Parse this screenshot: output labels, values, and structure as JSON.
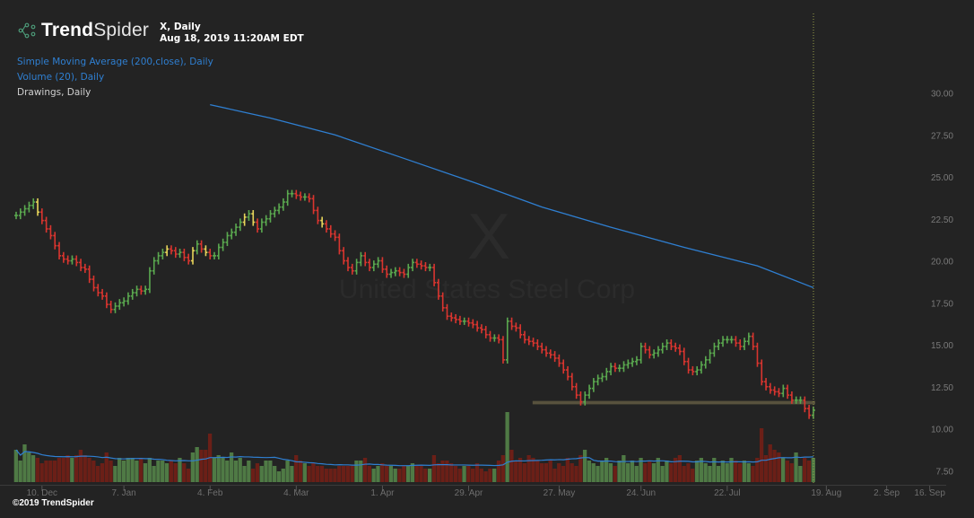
{
  "header": {
    "brand_bold": "Trend",
    "brand_light": "Spider",
    "symbol_line": "X, Daily",
    "timestamp": "Aug 18, 2019 11:20AM EDT"
  },
  "indicators": [
    {
      "label": "Simple Moving Average (200,close), Daily",
      "color": "#2f7fd1"
    },
    {
      "label": "Volume (20), Daily",
      "color": "#2f7fd1"
    },
    {
      "label": "Drawings, Daily",
      "color": "#cfcfcf"
    }
  ],
  "watermark": {
    "ticker": "X",
    "company": "United States Steel Corp"
  },
  "copyright": "©2019 TrendSpider",
  "colors": {
    "up": "#5aa84f",
    "down": "#d9352f",
    "neutral": "#e6d45a",
    "vol_up": "#4f7a45",
    "vol_down": "#6b1f17",
    "sma": "#2f7fd1",
    "zone": "#5e5840",
    "background": "#232323"
  },
  "chart_data": {
    "type": "ohlc",
    "title": "X, Daily",
    "y_ticks": [
      "30.00",
      "27.50",
      "25.00",
      "22.50",
      "20.00",
      "17.50",
      "15.00",
      "12.50",
      "10.00",
      "7.50"
    ],
    "ylim": [
      7.5,
      30
    ],
    "x_ticks": [
      {
        "label": "10. Dec",
        "index": 6
      },
      {
        "label": "7. Jan",
        "index": 25
      },
      {
        "label": "4. Feb",
        "index": 45
      },
      {
        "label": "4. Mar",
        "index": 65
      },
      {
        "label": "1. Apr",
        "index": 85
      },
      {
        "label": "29. Apr",
        "index": 105
      },
      {
        "label": "27. May",
        "index": 126
      },
      {
        "label": "24. Jun",
        "index": 145
      },
      {
        "label": "22. Jul",
        "index": 165
      },
      {
        "label": "19. Aug",
        "index": 188
      },
      {
        "label": "2. Sep",
        "index": 202
      },
      {
        "label": "16. Sep",
        "index": 212
      }
    ],
    "closes": [
      22.7,
      22.9,
      23.1,
      23.3,
      23.5,
      22.9,
      22.4,
      21.9,
      21.5,
      20.9,
      20.3,
      20.1,
      20.0,
      20.1,
      19.9,
      19.6,
      19.5,
      18.9,
      18.4,
      18.1,
      17.9,
      17.4,
      17.1,
      17.3,
      17.5,
      17.6,
      17.9,
      18.1,
      18.3,
      18.2,
      18.3,
      19.4,
      20.0,
      20.3,
      20.5,
      20.7,
      20.6,
      20.4,
      20.5,
      20.2,
      20.0,
      20.6,
      21.0,
      20.7,
      20.5,
      20.3,
      20.3,
      20.8,
      21.1,
      21.5,
      21.7,
      22.0,
      22.3,
      22.6,
      22.8,
      22.3,
      21.9,
      22.3,
      22.5,
      22.8,
      23.0,
      23.2,
      23.5,
      24.0,
      24.0,
      23.9,
      23.8,
      23.8,
      23.7,
      23.0,
      22.4,
      22.2,
      21.9,
      21.6,
      21.4,
      20.6,
      20.0,
      19.6,
      19.4,
      19.9,
      20.3,
      19.9,
      19.6,
      19.8,
      20.0,
      19.5,
      19.2,
      19.3,
      19.4,
      19.3,
      19.2,
      19.6,
      19.9,
      19.8,
      19.7,
      19.6,
      19.6,
      18.7,
      17.9,
      17.2,
      16.7,
      16.6,
      16.5,
      16.4,
      16.4,
      16.3,
      16.2,
      16.0,
      15.9,
      15.6,
      15.4,
      15.4,
      15.3,
      14.1,
      16.4,
      16.1,
      16.0,
      15.6,
      15.3,
      15.2,
      15.1,
      14.9,
      14.7,
      14.5,
      14.4,
      14.2,
      13.9,
      13.5,
      13.1,
      12.5,
      12.0,
      11.6,
      12.0,
      12.4,
      12.8,
      13.0,
      13.1,
      13.4,
      13.7,
      13.6,
      13.6,
      13.8,
      13.9,
      14.0,
      14.1,
      14.9,
      14.7,
      14.4,
      14.5,
      14.7,
      14.9,
      15.1,
      14.9,
      14.8,
      14.6,
      14.0,
      13.5,
      13.4,
      13.5,
      13.8,
      14.1,
      14.5,
      14.9,
      15.1,
      15.3,
      15.3,
      15.3,
      15.1,
      14.9,
      15.2,
      15.5,
      14.9,
      13.9,
      12.8,
      12.5,
      12.3,
      12.2,
      12.1,
      12.4,
      12.0,
      11.7,
      11.7,
      11.7,
      11.2,
      10.8,
      11.1
    ],
    "neutral_bars": [
      5,
      35,
      41,
      44,
      53,
      55,
      71
    ],
    "volumes": [
      12,
      8,
      14,
      11,
      10,
      9,
      7,
      8,
      8,
      8,
      9,
      9,
      10,
      9,
      10,
      12,
      10,
      9,
      8,
      6,
      7,
      11,
      8,
      6,
      9,
      8,
      9,
      9,
      8,
      9,
      7,
      9,
      6,
      8,
      8,
      7,
      8,
      7,
      9,
      7,
      5,
      11,
      13,
      12,
      12,
      18,
      9,
      10,
      9,
      8,
      11,
      8,
      9,
      6,
      8,
      5,
      7,
      6,
      8,
      8,
      6,
      4,
      5,
      8,
      6,
      10,
      8,
      7,
      6,
      7,
      6,
      6,
      5,
      5,
      5,
      6,
      6,
      6,
      6,
      8,
      8,
      9,
      6,
      5,
      6,
      7,
      6,
      6,
      5,
      5,
      6,
      6,
      7,
      6,
      6,
      5,
      5,
      10,
      7,
      8,
      8,
      7,
      6,
      5,
      6,
      6,
      5,
      7,
      5,
      4,
      5,
      5,
      8,
      10,
      26,
      12,
      8,
      9,
      7,
      10,
      9,
      8,
      7,
      7,
      8,
      5,
      7,
      6,
      9,
      7,
      6,
      10,
      12,
      8,
      7,
      6,
      8,
      9,
      7,
      6,
      8,
      10,
      7,
      8,
      6,
      9,
      7,
      8,
      7,
      9,
      6,
      8,
      7,
      9,
      10,
      6,
      7,
      5,
      8,
      9,
      7,
      6,
      9,
      6,
      8,
      7,
      9,
      8,
      7,
      8,
      7,
      6,
      9,
      20,
      10,
      14,
      12,
      11,
      9,
      8,
      7,
      11,
      6,
      9,
      8,
      9
    ],
    "volume_ma_period": 20,
    "sma200": [
      [
        45,
        29.3
      ],
      [
        59,
        28.5
      ],
      [
        74,
        27.5
      ],
      [
        90,
        26.1
      ],
      [
        107,
        24.6
      ],
      [
        122,
        23.2
      ],
      [
        138,
        22.0
      ],
      [
        155,
        20.8
      ],
      [
        172,
        19.7
      ],
      [
        185,
        18.4
      ]
    ],
    "support_zone": {
      "from_index": 124,
      "to_index": 185,
      "low": 11.45,
      "high": 11.65
    }
  }
}
